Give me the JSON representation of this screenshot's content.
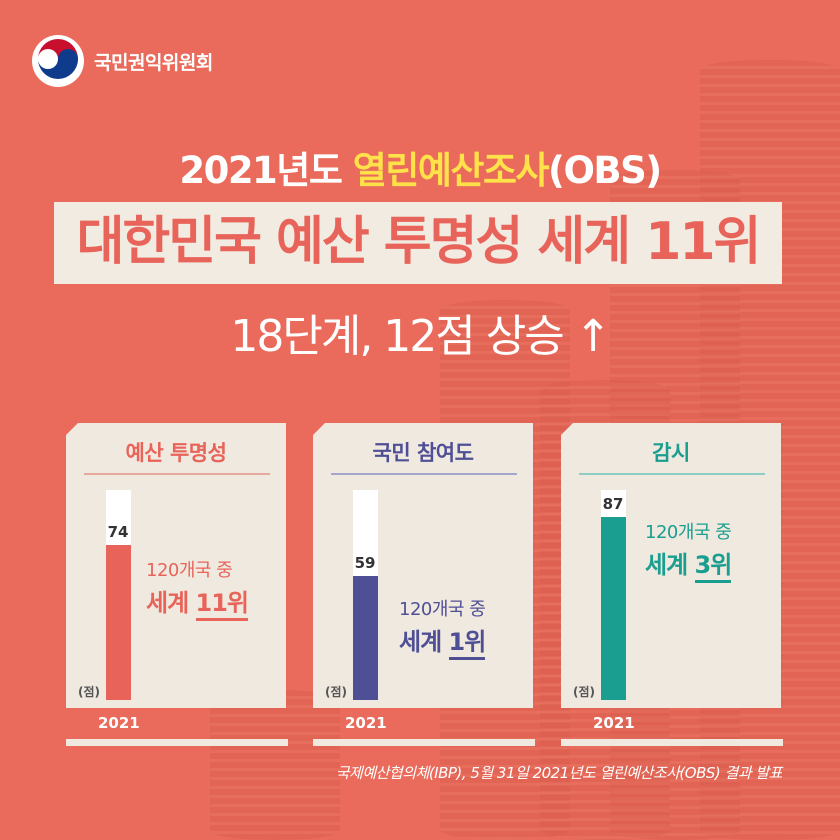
{
  "org": {
    "name": "국민권익위원회"
  },
  "headline": {
    "line1_prefix": "2021년도 ",
    "line1_highlight": "열린예산조사",
    "line1_suffix": "(OBS)",
    "line2": "대한민국 예산 투명성 세계 11위",
    "line3": "18단계, 12점 상승 ↑"
  },
  "colors": {
    "background": "#ea6b5b",
    "highlight": "#ffe14a",
    "panel": "#f0e9df"
  },
  "chart_data": [
    {
      "type": "bar",
      "title": "예산 투명성",
      "categories": [
        "2021"
      ],
      "values": [
        74
      ],
      "ylim": [
        0,
        100
      ],
      "unit": "(점)",
      "rank_sub": "120개국 중",
      "rank_prefix": "세계 ",
      "rank_num": "11위",
      "color": "#e8645a"
    },
    {
      "type": "bar",
      "title": "국민 참여도",
      "categories": [
        "2021"
      ],
      "values": [
        59
      ],
      "ylim": [
        0,
        100
      ],
      "unit": "(점)",
      "rank_sub": "120개국 중",
      "rank_prefix": "세계 ",
      "rank_num": "1위",
      "color": "#4f4f96"
    },
    {
      "type": "bar",
      "title": "감시",
      "categories": [
        "2021"
      ],
      "values": [
        87
      ],
      "ylim": [
        0,
        100
      ],
      "unit": "(점)",
      "rank_sub": "120개국 중",
      "rank_prefix": "세계 ",
      "rank_num": "3위",
      "color": "#1a9e8f"
    }
  ],
  "source": "국제예산협의체(IBP), 5월 31일 2021년도 열린예산조사(OBS) 결과 발표"
}
